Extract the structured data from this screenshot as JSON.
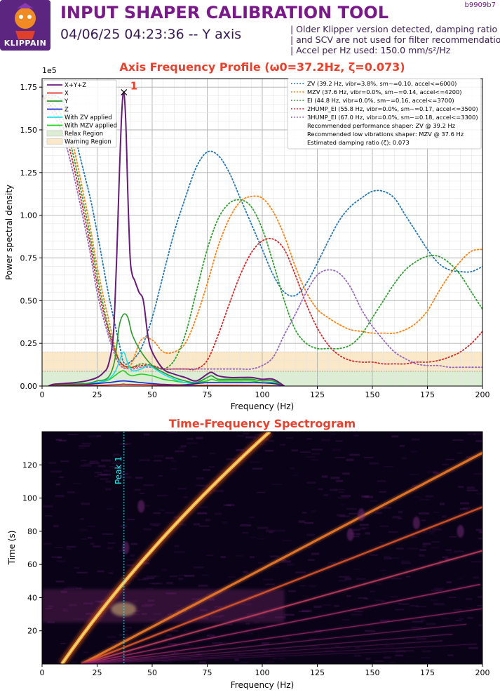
{
  "header": {
    "title": "INPUT SHAPER CALIBRATION TOOL",
    "subtitle": "04/06/25 04:23:36 -- Y axis",
    "version": "b9909b7",
    "logo_text": "KLIPPAIN",
    "notes": [
      "| Older Klipper version detected, damping ratio",
      "| and SCV are not used for filter recommendations",
      "| Accel per Hz used: 150.0 mm/s²/Hz"
    ]
  },
  "colors": {
    "title_red": "#e8412c",
    "purple": "#6a1b7a",
    "relax_region": "#dbeed3",
    "warning_region": "#fbe8c8"
  },
  "chart_data": [
    {
      "type": "line",
      "title": "Axis Frequency Profile (ω0=37.2Hz, ζ=0.073)",
      "xlabel": "Frequency (Hz)",
      "ylabel": "Power spectral density",
      "y_scale_label": "1e5",
      "xlim": [
        0,
        200
      ],
      "ylim": [
        0,
        1.8
      ],
      "x_ticks": [
        "0",
        "25",
        "50",
        "75",
        "100",
        "125",
        "150",
        "175",
        "200"
      ],
      "y_ticks": [
        "0.00",
        "0.25",
        "0.50",
        "0.75",
        "1.00",
        "1.25",
        "1.50",
        "1.75"
      ],
      "grid": true,
      "peak": {
        "x": 37.2,
        "y": 1.72,
        "label": "1"
      },
      "regions": [
        {
          "name": "Relax Region",
          "y": [
            0,
            0.087
          ],
          "color": "#dbeed3"
        },
        {
          "name": "Warning Region",
          "y": [
            0.087,
            0.2
          ],
          "color": "#fbe8c8"
        }
      ],
      "series": [
        {
          "name": "X+Y+Z",
          "color": "#6a1b7a",
          "style": "solid",
          "x": [
            3,
            5,
            10,
            15,
            20,
            25,
            28,
            30,
            32,
            33,
            34,
            35,
            36,
            37,
            38,
            39,
            40,
            41,
            42,
            44,
            46,
            48,
            50,
            55,
            60,
            65,
            70,
            75,
            77,
            80,
            85,
            90,
            95,
            100,
            105,
            110
          ],
          "y": [
            0.0,
            0.01,
            0.015,
            0.02,
            0.03,
            0.05,
            0.08,
            0.12,
            0.25,
            0.45,
            0.8,
            1.2,
            1.55,
            1.72,
            1.55,
            1.1,
            0.75,
            0.65,
            0.62,
            0.55,
            0.5,
            0.3,
            0.2,
            0.1,
            0.07,
            0.05,
            0.03,
            0.07,
            0.08,
            0.06,
            0.05,
            0.05,
            0.05,
            0.04,
            0.04,
            0.0
          ]
        },
        {
          "name": "X",
          "color": "#e02020",
          "style": "solid",
          "x": [
            3,
            10,
            20,
            30,
            36,
            37,
            38,
            45,
            55,
            65,
            75,
            85,
            95,
            105,
            110
          ],
          "y": [
            0.0,
            0.002,
            0.004,
            0.006,
            0.01,
            0.012,
            0.01,
            0.008,
            0.005,
            0.004,
            0.004,
            0.004,
            0.003,
            0.002,
            0.0
          ]
        },
        {
          "name": "Y",
          "color": "#2a9a2a",
          "style": "solid",
          "x": [
            3,
            10,
            20,
            25,
            30,
            33,
            35,
            37,
            39,
            41,
            45,
            50,
            55,
            60,
            65,
            70,
            75,
            77,
            80,
            85,
            90,
            95,
            100,
            105,
            110
          ],
          "y": [
            0.0,
            0.01,
            0.015,
            0.03,
            0.05,
            0.15,
            0.35,
            0.42,
            0.4,
            0.3,
            0.2,
            0.12,
            0.08,
            0.05,
            0.03,
            0.02,
            0.05,
            0.06,
            0.04,
            0.04,
            0.04,
            0.04,
            0.03,
            0.03,
            0.0
          ]
        },
        {
          "name": "Z",
          "color": "#1a2ad0",
          "style": "solid",
          "x": [
            3,
            10,
            20,
            30,
            37,
            45,
            55,
            65,
            75,
            85,
            95,
            105,
            110
          ],
          "y": [
            0.0,
            0.005,
            0.01,
            0.02,
            0.03,
            0.02,
            0.01,
            0.008,
            0.02,
            0.02,
            0.02,
            0.015,
            0.0
          ]
        },
        {
          "name": "With ZV applied",
          "color": "#1ee0e8",
          "style": "solid",
          "x": [
            3,
            10,
            20,
            25,
            30,
            33,
            35,
            37,
            39,
            41,
            45,
            48,
            50,
            55,
            60,
            65,
            70,
            75,
            77,
            80,
            85,
            90,
            95,
            100,
            105,
            110
          ],
          "y": [
            0.0,
            0.01,
            0.015,
            0.02,
            0.04,
            0.08,
            0.14,
            0.2,
            0.13,
            0.09,
            0.1,
            0.12,
            0.11,
            0.07,
            0.04,
            0.02,
            0.02,
            0.05,
            0.06,
            0.04,
            0.04,
            0.04,
            0.04,
            0.03,
            0.03,
            0.0
          ]
        },
        {
          "name": "With MZV applied",
          "color": "#22d022",
          "style": "solid",
          "x": [
            3,
            10,
            20,
            25,
            30,
            33,
            35,
            37,
            39,
            41,
            45,
            50,
            55,
            60,
            65,
            70,
            75,
            77,
            80,
            85,
            90,
            95,
            100,
            105,
            110
          ],
          "y": [
            0.0,
            0.01,
            0.015,
            0.02,
            0.035,
            0.06,
            0.08,
            0.09,
            0.07,
            0.06,
            0.07,
            0.06,
            0.04,
            0.03,
            0.02,
            0.02,
            0.03,
            0.04,
            0.03,
            0.03,
            0.03,
            0.03,
            0.02,
            0.02,
            0.0
          ]
        },
        {
          "name": "ZV (39.2 Hz, vibr=3.8%, sm~=0.10, accel<=6000)",
          "color": "#1f77b4",
          "style": "dotted",
          "x": [
            0,
            10,
            20,
            25,
            30,
            35,
            37,
            40,
            45,
            50,
            55,
            60,
            65,
            70,
            75,
            80,
            85,
            90,
            95,
            100,
            105,
            110,
            115,
            120,
            125,
            130,
            135,
            140,
            145,
            150,
            155,
            160,
            165,
            170,
            175,
            180,
            185,
            190,
            195,
            200
          ],
          "y": [
            1.7,
            1.65,
            1.2,
            0.9,
            0.55,
            0.25,
            0.14,
            0.14,
            0.22,
            0.4,
            0.65,
            0.9,
            1.1,
            1.28,
            1.37,
            1.35,
            1.25,
            1.1,
            0.95,
            0.8,
            0.65,
            0.55,
            0.53,
            0.6,
            0.72,
            0.85,
            0.97,
            1.05,
            1.1,
            1.14,
            1.14,
            1.1,
            1.0,
            0.9,
            0.8,
            0.72,
            0.68,
            0.67,
            0.67,
            0.7
          ]
        },
        {
          "name": "MZV (37.6 Hz, vibr=0.0%, sm~=0.14, accel<=4200)",
          "color": "#ff7f0e",
          "style": "dotted",
          "x": [
            0,
            10,
            20,
            25,
            30,
            35,
            40,
            45,
            50,
            55,
            60,
            65,
            70,
            75,
            80,
            85,
            90,
            95,
            100,
            105,
            110,
            115,
            120,
            125,
            130,
            135,
            140,
            145,
            150,
            155,
            160,
            165,
            170,
            175,
            180,
            185,
            190,
            195,
            200
          ],
          "y": [
            1.7,
            1.6,
            1.05,
            0.7,
            0.4,
            0.15,
            0.12,
            0.27,
            0.27,
            0.2,
            0.2,
            0.25,
            0.4,
            0.6,
            0.82,
            0.98,
            1.08,
            1.11,
            1.1,
            1.02,
            0.88,
            0.7,
            0.55,
            0.45,
            0.4,
            0.36,
            0.33,
            0.32,
            0.31,
            0.31,
            0.31,
            0.33,
            0.37,
            0.44,
            0.55,
            0.65,
            0.73,
            0.79,
            0.8
          ]
        },
        {
          "name": "EI (44.8 Hz, vibr=0.0%, sm~=0.16, accel<=3700)",
          "color": "#2ca02c",
          "style": "dotted",
          "x": [
            0,
            10,
            20,
            25,
            30,
            35,
            40,
            45,
            50,
            55,
            60,
            65,
            70,
            75,
            80,
            85,
            90,
            95,
            100,
            105,
            110,
            115,
            120,
            125,
            130,
            135,
            140,
            145,
            150,
            155,
            160,
            165,
            170,
            175,
            180,
            185,
            190,
            195,
            200
          ],
          "y": [
            1.7,
            1.55,
            1.0,
            0.65,
            0.35,
            0.15,
            0.11,
            0.13,
            0.12,
            0.1,
            0.15,
            0.3,
            0.55,
            0.8,
            0.98,
            1.07,
            1.09,
            1.05,
            0.92,
            0.72,
            0.5,
            0.33,
            0.25,
            0.22,
            0.22,
            0.22,
            0.24,
            0.3,
            0.4,
            0.5,
            0.6,
            0.68,
            0.73,
            0.76,
            0.76,
            0.72,
            0.65,
            0.55,
            0.45
          ]
        },
        {
          "name": "2HUMP_EI (55.8 Hz, vibr=0.0%, sm~=0.17, accel<=3500)",
          "color": "#d62728",
          "style": "dotted",
          "x": [
            0,
            10,
            20,
            25,
            30,
            35,
            40,
            45,
            50,
            55,
            60,
            65,
            70,
            75,
            80,
            85,
            90,
            95,
            100,
            105,
            110,
            115,
            120,
            125,
            130,
            135,
            140,
            145,
            150,
            155,
            160,
            165,
            170,
            175,
            180,
            185,
            190,
            195,
            200
          ],
          "y": [
            1.7,
            1.5,
            0.95,
            0.6,
            0.33,
            0.15,
            0.11,
            0.12,
            0.12,
            0.1,
            0.1,
            0.1,
            0.1,
            0.15,
            0.3,
            0.48,
            0.65,
            0.78,
            0.85,
            0.86,
            0.8,
            0.65,
            0.48,
            0.34,
            0.24,
            0.18,
            0.15,
            0.14,
            0.14,
            0.13,
            0.13,
            0.13,
            0.14,
            0.14,
            0.15,
            0.17,
            0.2,
            0.25,
            0.32
          ]
        },
        {
          "name": "3HUMP_EI (67.0 Hz, vibr=0.0%, sm~=0.18, accel<=3300)",
          "color": "#9467bd",
          "style": "dotted",
          "x": [
            0,
            10,
            20,
            25,
            30,
            35,
            40,
            45,
            50,
            55,
            60,
            65,
            70,
            75,
            80,
            85,
            90,
            95,
            100,
            105,
            110,
            115,
            120,
            125,
            130,
            135,
            140,
            145,
            150,
            155,
            160,
            165,
            170,
            175,
            180,
            185,
            190,
            195,
            200
          ],
          "y": [
            1.7,
            1.45,
            0.9,
            0.55,
            0.3,
            0.13,
            0.1,
            0.11,
            0.11,
            0.1,
            0.1,
            0.1,
            0.1,
            0.1,
            0.1,
            0.1,
            0.1,
            0.1,
            0.12,
            0.17,
            0.3,
            0.42,
            0.55,
            0.65,
            0.68,
            0.66,
            0.58,
            0.45,
            0.35,
            0.27,
            0.2,
            0.16,
            0.13,
            0.12,
            0.12,
            0.11,
            0.11,
            0.11,
            0.11
          ]
        }
      ],
      "legend_left": [
        "X+Y+Z",
        "X",
        "Y",
        "Z",
        "With ZV applied",
        "With MZV applied",
        "Relax Region",
        "Warning Region"
      ],
      "legend_right_notes": [
        "Recommended performance shaper: ZV @ 39.2 Hz",
        "Recommended low vibrations shaper: MZV @ 37.6 Hz",
        "Estimated damping ratio (ζ): 0.073"
      ]
    },
    {
      "type": "heatmap",
      "title": "Time-Frequency Spectrogram",
      "xlabel": "Frequency (Hz)",
      "ylabel": "Time (s)",
      "xlim": [
        0,
        200
      ],
      "ylim": [
        0,
        140
      ],
      "x_ticks": [
        "0",
        "25",
        "50",
        "75",
        "100",
        "125",
        "150",
        "175",
        "200"
      ],
      "y_ticks": [
        "20",
        "40",
        "60",
        "80",
        "100",
        "120"
      ],
      "annotation": {
        "label": "Peak 1",
        "x": 37.2
      },
      "colormap": "inferno"
    }
  ]
}
